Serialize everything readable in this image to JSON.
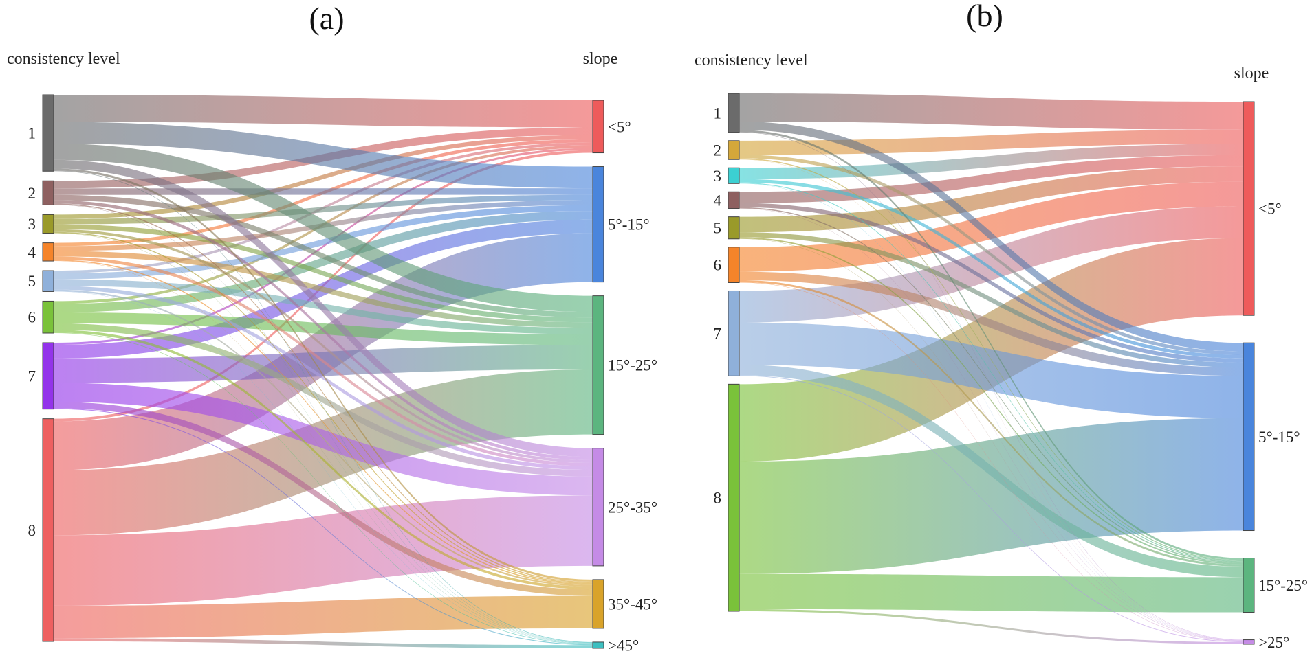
{
  "chart_data": [
    {
      "type": "sankey",
      "panel_label": "(a)",
      "left_title": "consistency level",
      "right_title": "slope",
      "sources": [
        {
          "label": "1",
          "color": "#6b6b6b"
        },
        {
          "label": "2",
          "color": "#8e6060"
        },
        {
          "label": "3",
          "color": "#9a9a2a"
        },
        {
          "label": "4",
          "color": "#f5842a"
        },
        {
          "label": "5",
          "color": "#8fb0da"
        },
        {
          "label": "6",
          "color": "#7ac23a"
        },
        {
          "label": "7",
          "color": "#9333ea"
        },
        {
          "label": "8",
          "color": "#ee6060"
        }
      ],
      "targets": [
        {
          "label": "<5°",
          "color": "#ee5b5b"
        },
        {
          "label": "5°-15°",
          "color": "#4a85dc"
        },
        {
          "label": "15°-25°",
          "color": "#5cb57f"
        },
        {
          "label": "25°-35°",
          "color": "#c58be6"
        },
        {
          "label": "35°-45°",
          "color": "#d9a32a"
        },
        {
          "label": ">45°",
          "color": "#3cbfc0"
        }
      ],
      "flows": [
        [
          0.5,
          0.4,
          0.3,
          0.16,
          0.04,
          0.01
        ],
        [
          0.14,
          0.12,
          0.1,
          0.06,
          0.02,
          0.005
        ],
        [
          0.08,
          0.1,
          0.09,
          0.05,
          0.02,
          0.005
        ],
        [
          0.06,
          0.09,
          0.1,
          0.06,
          0.02,
          0.005
        ],
        [
          0.05,
          0.11,
          0.12,
          0.07,
          0.03,
          0.005
        ],
        [
          0.05,
          0.16,
          0.2,
          0.12,
          0.05,
          0.01
        ],
        [
          0.04,
          0.25,
          0.45,
          0.35,
          0.12,
          0.015
        ],
        [
          0.05,
          0.9,
          1.2,
          1.3,
          0.6,
          0.06
        ]
      ]
    },
    {
      "type": "sankey",
      "panel_label": "(b)",
      "left_title": "consistency level",
      "right_title": "slope",
      "sources": [
        {
          "label": "1",
          "color": "#6b6b6b"
        },
        {
          "label": "2",
          "color": "#d4a73a"
        },
        {
          "label": "3",
          "color": "#3cd0d2"
        },
        {
          "label": "4",
          "color": "#8e6060"
        },
        {
          "label": "5",
          "color": "#9a9a2a"
        },
        {
          "label": "6",
          "color": "#f5842a"
        },
        {
          "label": "7",
          "color": "#8fb0da"
        },
        {
          "label": "8",
          "color": "#7ac23a"
        }
      ],
      "targets": [
        {
          "label": "<5°",
          "color": "#ee5b5b"
        },
        {
          "label": "5°-15°",
          "color": "#4a85dc"
        },
        {
          "label": "15°-25°",
          "color": "#5cb57f"
        },
        {
          "label": ">25°",
          "color": "#c58be6"
        }
      ],
      "flows": [
        [
          0.4,
          0.12,
          0.03,
          0.005
        ],
        [
          0.2,
          0.05,
          0.015,
          0.003
        ],
        [
          0.16,
          0.05,
          0.012,
          0.003
        ],
        [
          0.16,
          0.06,
          0.015,
          0.003
        ],
        [
          0.22,
          0.07,
          0.02,
          0.004
        ],
        [
          0.35,
          0.12,
          0.03,
          0.005
        ],
        [
          0.45,
          0.6,
          0.15,
          0.01
        ],
        [
          1.1,
          1.6,
          0.5,
          0.03
        ]
      ]
    }
  ]
}
